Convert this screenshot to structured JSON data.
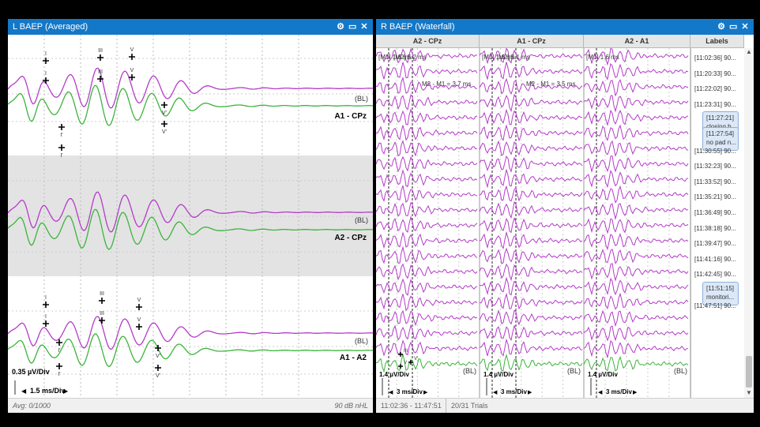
{
  "left": {
    "title": "L BAEP (Averaged)",
    "channels": [
      {
        "name": "A1 - CPz",
        "baseline": "(BL)"
      },
      {
        "name": "A2 - CPz",
        "baseline": "(BL)"
      },
      {
        "name": "A1 - A2",
        "baseline": "(BL)"
      }
    ],
    "peaks1": [
      "I",
      "I",
      "III",
      "III",
      "V",
      "V",
      "I'",
      "I'",
      "V'",
      "V'"
    ],
    "peaks3": [
      "I",
      "I",
      "III",
      "III",
      "V",
      "V",
      "I'",
      "I'",
      "V'",
      "V'"
    ],
    "scale_amp": "0.35 µV/Div",
    "scale_time": "1.5 ms/Div",
    "status_avg": "Avg: 0/1000",
    "status_db": "90 dB nHL"
  },
  "right": {
    "title": "R BAEP (Waterfall)",
    "columns": [
      {
        "name": "A2 - CPz",
        "marker1": "[M1] 1.6 ms",
        "marker2": "[M2] 5.2 ms",
        "delta": "M2 - M1 = 3.7 ms",
        "baseline": "(BL)",
        "amp": "1.4 µV/Div",
        "time": "3 ms/Div"
      },
      {
        "name": "A1 - CPz",
        "marker1": "[M1] 1.6 ms",
        "marker2": "[M2] 5.1 ms",
        "delta": "M2 - M1 = 3.5 ms",
        "baseline": "(BL)",
        "amp": "1.4 µV/Div",
        "time": "3 ms/Div"
      },
      {
        "name": "A2 - A1",
        "marker1": "[M1] 1.6 ms",
        "marker2": "",
        "delta": "",
        "baseline": "(BL)",
        "amp": "1.4 µV/Div",
        "time": "3 ms/Div"
      }
    ],
    "peaks_bottom": [
      "III",
      "V",
      "V'"
    ],
    "labels_header": "Labels",
    "labels": [
      {
        "time": "[11:02:36]",
        "value": "90..."
      },
      {
        "time": "[11:20:33]",
        "value": "90..."
      },
      {
        "time": "[11:22:02]",
        "value": "90..."
      },
      {
        "time": "[11:23:31]",
        "value": "90..."
      },
      {
        "time": "[11:27:21]",
        "value": "closing b...",
        "note": true
      },
      {
        "time": "[11:27:54]",
        "value": "no pad n...",
        "note": true
      },
      {
        "time": "[11:30:55]",
        "value": "90..."
      },
      {
        "time": "[11:32:23]",
        "value": "90..."
      },
      {
        "time": "[11:33:52]",
        "value": "90..."
      },
      {
        "time": "[11:35:21]",
        "value": "90..."
      },
      {
        "time": "[11:36:49]",
        "value": "90..."
      },
      {
        "time": "[11:38:18]",
        "value": "90..."
      },
      {
        "time": "[11:39:47]",
        "value": "90..."
      },
      {
        "time": "[11:41:16]",
        "value": "90..."
      },
      {
        "time": "[11:42:45]",
        "value": "90..."
      },
      {
        "time": "[11:51:15]",
        "value": "monitori...",
        "note": true
      },
      {
        "time": "[11:47:51]",
        "value": "90..."
      }
    ],
    "status_range": "11:02:36 - 11:47:51",
    "status_trials": "20/31 Trials"
  },
  "colors": {
    "titlebar": "#1378c8",
    "trace_magenta": "#b43cc8",
    "trace_green": "#3cb43c",
    "band_gray": "#e3e3e3"
  }
}
